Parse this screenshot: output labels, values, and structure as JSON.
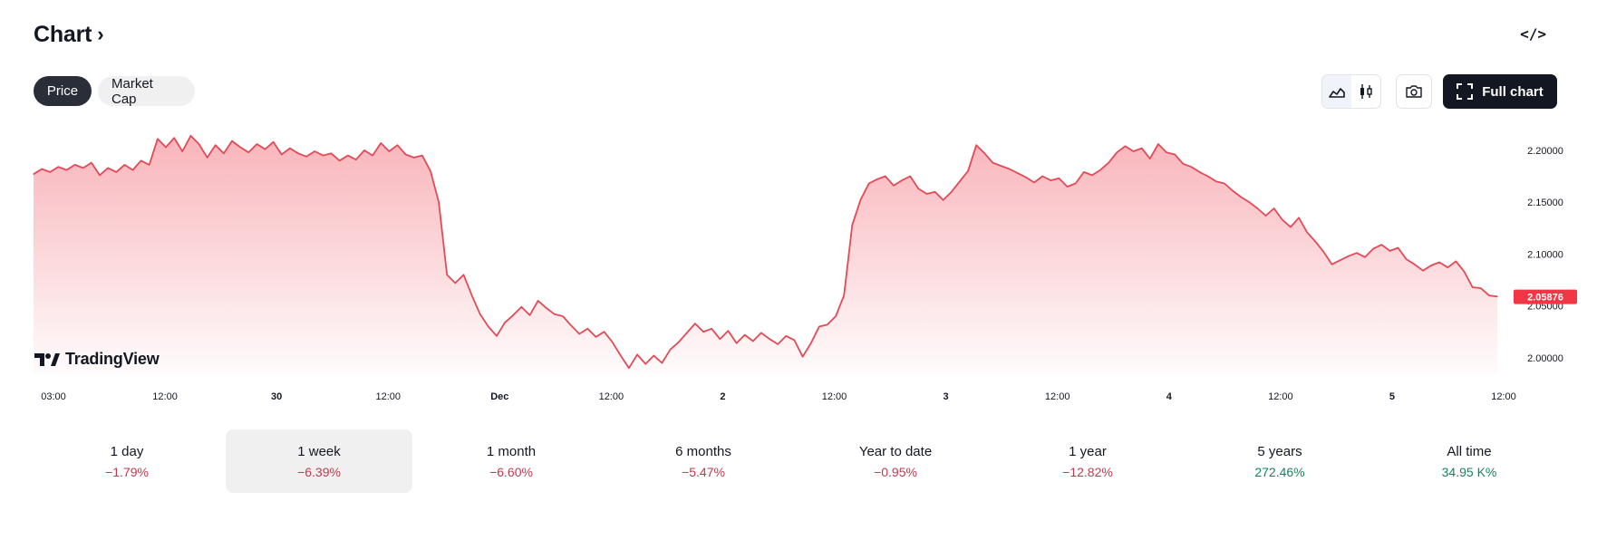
{
  "header": {
    "title": "Chart",
    "chevron": "›"
  },
  "embed": {
    "label": "</>"
  },
  "toggles": {
    "price": "Price",
    "market_cap": "Market Cap"
  },
  "toolbar": {
    "full_chart": "Full chart",
    "style_icons": [
      "area-style-icon",
      "candle-style-icon"
    ],
    "camera_icon": "camera-icon"
  },
  "brand": {
    "logo_text": "TradingView"
  },
  "colors": {
    "line": "#e64956",
    "fill_top": "#f7a7ae",
    "price_tag": "#f23645",
    "negative": "#c2394d",
    "positive": "#17855b"
  },
  "chart_data": {
    "type": "area",
    "y_axis_ticks": [
      "2.20000",
      "2.15000",
      "2.10000",
      "2.05000",
      "2.00000"
    ],
    "ylim": [
      1.985,
      2.22
    ],
    "last_price": "2.05876",
    "x_axis_ticks": [
      "03:00",
      "12:00",
      "30",
      "12:00",
      "Dec",
      "12:00",
      "2",
      "12:00",
      "3",
      "12:00",
      "4",
      "12:00",
      "5",
      "12:00"
    ],
    "grid": false,
    "legend": "none",
    "series": [
      {
        "values": [
          2.177,
          2.182,
          2.179,
          2.184,
          2.181,
          2.186,
          2.183,
          2.188,
          2.176,
          2.183,
          2.179,
          2.186,
          2.181,
          2.19,
          2.186,
          2.211,
          2.203,
          2.212,
          2.199,
          2.214,
          2.206,
          2.193,
          2.205,
          2.197,
          2.209,
          2.203,
          2.198,
          2.206,
          2.201,
          2.208,
          2.196,
          2.202,
          2.197,
          2.194,
          2.199,
          2.195,
          2.197,
          2.19,
          2.195,
          2.191,
          2.2,
          2.195,
          2.207,
          2.199,
          2.205,
          2.196,
          2.193,
          2.195,
          2.18,
          2.15,
          2.08,
          2.072,
          2.08,
          2.06,
          2.042,
          2.03,
          2.021,
          2.034,
          2.041,
          2.049,
          2.041,
          2.055,
          2.048,
          2.042,
          2.04,
          2.031,
          2.023,
          2.028,
          2.02,
          2.025,
          2.015,
          2.002,
          1.99,
          2.003,
          1.994,
          2.002,
          1.995,
          2.008,
          2.015,
          2.024,
          2.033,
          2.025,
          2.028,
          2.018,
          2.026,
          2.014,
          2.022,
          2.016,
          2.024,
          2.018,
          2.013,
          2.021,
          2.017,
          2.001,
          2.014,
          2.03,
          2.032,
          2.04,
          2.06,
          2.128,
          2.152,
          2.168,
          2.172,
          2.175,
          2.166,
          2.171,
          2.175,
          2.163,
          2.158,
          2.16,
          2.152,
          2.16,
          2.17,
          2.18,
          2.205,
          2.197,
          2.188,
          2.185,
          2.182,
          2.178,
          2.174,
          2.169,
          2.175,
          2.171,
          2.173,
          2.165,
          2.168,
          2.179,
          2.176,
          2.181,
          2.188,
          2.198,
          2.204,
          2.199,
          2.202,
          2.192,
          2.206,
          2.198,
          2.196,
          2.187,
          2.184,
          2.179,
          2.175,
          2.17,
          2.168,
          2.161,
          2.155,
          2.15,
          2.144,
          2.137,
          2.144,
          2.133,
          2.126,
          2.135,
          2.121,
          2.112,
          2.102,
          2.09,
          2.094,
          2.098,
          2.101,
          2.097,
          2.105,
          2.109,
          2.103,
          2.106,
          2.095,
          2.09,
          2.084,
          2.089,
          2.092,
          2.087,
          2.093,
          2.083,
          2.068,
          2.067,
          2.06,
          2.059
        ]
      }
    ]
  },
  "performance": [
    {
      "label": "1 day",
      "value": "−1.79%",
      "trend": "neg"
    },
    {
      "label": "1 week",
      "value": "−6.39%",
      "trend": "neg"
    },
    {
      "label": "1 month",
      "value": "−6.60%",
      "trend": "neg"
    },
    {
      "label": "6 months",
      "value": "−5.47%",
      "trend": "neg"
    },
    {
      "label": "Year to date",
      "value": "−0.95%",
      "trend": "neg"
    },
    {
      "label": "1 year",
      "value": "−12.82%",
      "trend": "neg"
    },
    {
      "label": "5 years",
      "value": "272.46%",
      "trend": "pos"
    },
    {
      "label": "All time",
      "value": "34.95 K%",
      "trend": "pos"
    }
  ]
}
